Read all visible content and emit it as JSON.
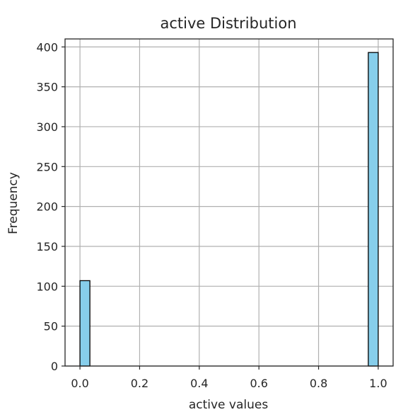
{
  "chart_data": {
    "type": "bar",
    "title": "active Distribution",
    "xlabel": "active values",
    "ylabel": "Frequency",
    "xlim": [
      -0.05,
      1.05
    ],
    "ylim": [
      0,
      410
    ],
    "x_ticks": [
      0.0,
      0.2,
      0.4,
      0.6,
      0.8,
      1.0
    ],
    "x_tick_labels": [
      "0.0",
      "0.2",
      "0.4",
      "0.6",
      "0.8",
      "1.0"
    ],
    "y_ticks": [
      0,
      50,
      100,
      150,
      200,
      250,
      300,
      350,
      400
    ],
    "y_tick_labels": [
      "0",
      "50",
      "100",
      "150",
      "200",
      "250",
      "300",
      "350",
      "400"
    ],
    "grid": true,
    "bins": [
      {
        "start": 0.0,
        "end": 0.0333,
        "count": 107
      },
      {
        "start": 0.9667,
        "end": 1.0,
        "count": 393
      }
    ],
    "colors": {
      "bar_fill": "#87CEEB",
      "bar_edge": "#000000",
      "grid": "#b0b0b0"
    }
  }
}
